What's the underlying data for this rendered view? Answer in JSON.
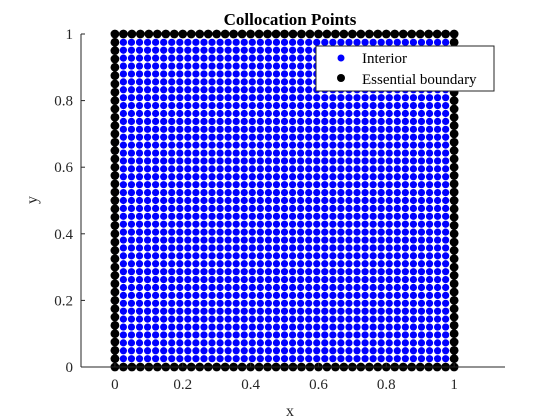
{
  "chart_data": {
    "type": "scatter",
    "title": "Collocation Points",
    "xlabel": "x",
    "ylabel": "y",
    "xlim": [
      -0.1,
      1.15
    ],
    "ylim": [
      0,
      1
    ],
    "xticks": [
      0,
      0.2,
      0.4,
      0.6,
      0.8,
      1
    ],
    "xtick_labels": [
      "0",
      "0.2",
      "0.4",
      "0.6",
      "0.8",
      "1"
    ],
    "yticks": [
      0,
      0.2,
      0.4,
      0.6,
      0.8,
      1
    ],
    "ytick_labels": [
      "0",
      "0.2",
      "0.4",
      "0.6",
      "0.8",
      "1"
    ],
    "grid": false,
    "legend_position": "top-right",
    "series": [
      {
        "name": "Interior",
        "color": "#0000ff",
        "marker": "circle",
        "grid_points_per_side": 41,
        "x_range": [
          0.025,
          0.975
        ],
        "y_range": [
          0.025,
          0.975
        ]
      },
      {
        "name": "Essential boundary",
        "color": "#000000",
        "marker": "circle",
        "points_per_side": 41,
        "x_range": [
          0,
          1
        ],
        "y_range": [
          0,
          1
        ]
      }
    ]
  }
}
